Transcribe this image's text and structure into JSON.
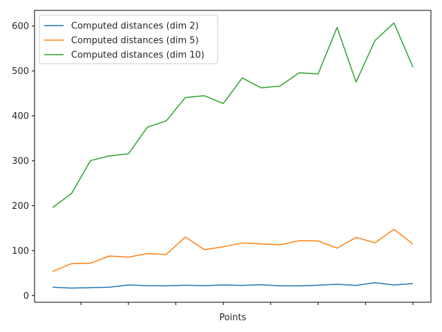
{
  "chart_data": {
    "type": "line",
    "title": "",
    "xlabel": "Points",
    "ylabel": "",
    "ylim": [
      -15,
      635
    ],
    "yticks": [
      0,
      100,
      200,
      300,
      400,
      500,
      600
    ],
    "grid": false,
    "legend_position": "top-left",
    "x": [
      1,
      2,
      3,
      4,
      5,
      6,
      7,
      8,
      9,
      10,
      11,
      12,
      13,
      14,
      15,
      16,
      17,
      18,
      19,
      20
    ],
    "series": [
      {
        "name": "Computed distances (dim 2)",
        "color": "#1f77b4",
        "values": [
          18.5,
          16.5,
          17.5,
          18.5,
          23.5,
          22,
          21.5,
          23,
          22,
          23.5,
          22.5,
          24,
          21.5,
          21.5,
          23,
          25,
          22.5,
          28.5,
          23.5,
          26.5
        ]
      },
      {
        "name": "Computed distances (dim 5)",
        "color": "#ff7f0e",
        "values": [
          53.5,
          71,
          72,
          88,
          85.5,
          93.5,
          91.5,
          130.5,
          102,
          108.5,
          117,
          115,
          113,
          122,
          121.5,
          105.5,
          129.5,
          117.5,
          147.5,
          114.5
        ]
      },
      {
        "name": "Computed distances (dim 10)",
        "color": "#2ca02c",
        "values": [
          196,
          227,
          300.5,
          311,
          315.5,
          375,
          389,
          441,
          445,
          427.5,
          484.5,
          462.5,
          466.5,
          496,
          493.5,
          597,
          475.5,
          568,
          607,
          508.5
        ]
      }
    ]
  }
}
